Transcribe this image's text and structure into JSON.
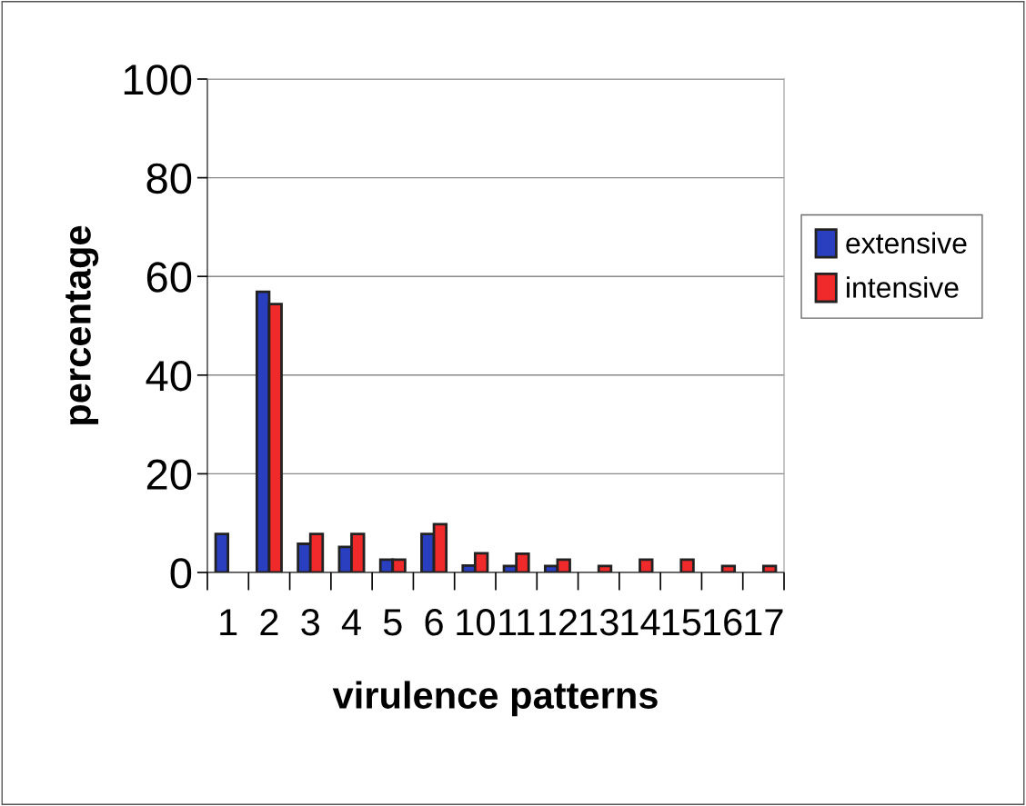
{
  "chart_data": {
    "type": "bar",
    "xlabel": "virulence patterns",
    "ylabel": "percentage",
    "categories": [
      "1",
      "2",
      "3",
      "4",
      "5",
      "6",
      "10",
      "11",
      "12",
      "13",
      "14",
      "15",
      "16",
      "17"
    ],
    "series": [
      {
        "name": "extensive",
        "color": "#2a3fc0",
        "values": [
          7.8,
          56.9,
          5.8,
          5.2,
          2.6,
          7.8,
          1.4,
          1.3,
          1.3,
          null,
          null,
          null,
          null,
          null
        ]
      },
      {
        "name": "intensive",
        "color": "#f02a2a",
        "values": [
          null,
          54.4,
          7.8,
          7.8,
          2.6,
          9.8,
          3.9,
          3.8,
          2.6,
          1.3,
          2.6,
          2.6,
          1.3,
          1.3
        ]
      }
    ],
    "ylim": [
      0,
      100
    ],
    "yticks": [
      0,
      20,
      40,
      60,
      80,
      100
    ],
    "grid": "y",
    "legend": "right"
  }
}
